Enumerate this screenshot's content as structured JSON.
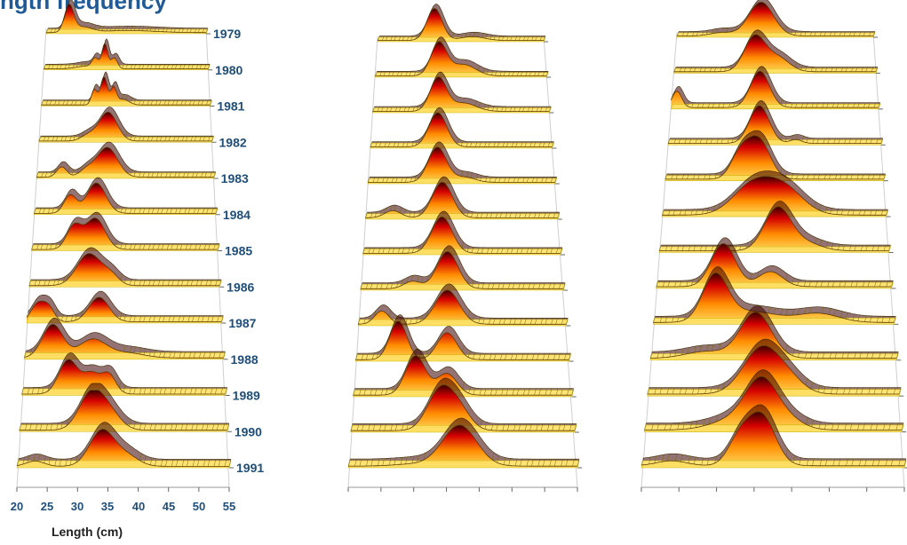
{
  "figure": {
    "title": "ngth frequency"
  },
  "colors": {
    "label": "#1f4e79",
    "ribbon_low": "#ffe066",
    "ribbon_mid": "#ff8c00",
    "ribbon_high": "#d40000",
    "ribbon_peak": "#3a0000",
    "base": "#c8b400"
  },
  "chart_data": [
    {
      "type": "area",
      "panel": "left",
      "xlabel": "Length (cm)",
      "ylabel": "",
      "xlim": [
        20,
        55
      ],
      "x_ticks": [
        "20",
        "25",
        "30",
        "35",
        "40",
        "45",
        "50",
        "55"
      ],
      "series": [
        {
          "name": "1979",
          "peaks": [
            [
              25,
              1.0,
              1.0
            ],
            [
              28,
              0.2,
              2.0
            ],
            [
              38,
              0.08,
              6.0
            ]
          ]
        },
        {
          "name": "1980",
          "peaks": [
            [
              33,
              0.9,
              0.6
            ],
            [
              31,
              0.35,
              0.7
            ],
            [
              35,
              0.4,
              0.7
            ],
            [
              29,
              0.1,
              2.0
            ]
          ]
        },
        {
          "name": "1981",
          "peaks": [
            [
              31,
              0.55,
              0.6
            ],
            [
              33,
              1.0,
              0.7
            ],
            [
              35,
              0.6,
              0.6
            ],
            [
              37,
              0.2,
              1.2
            ]
          ]
        },
        {
          "name": "1982",
          "peaks": [
            [
              34,
              1.0,
              1.8
            ],
            [
              30,
              0.2,
              1.5
            ]
          ]
        },
        {
          "name": "1983",
          "peaks": [
            [
              25,
              0.35,
              1.0
            ],
            [
              34,
              1.0,
              2.0
            ],
            [
              30,
              0.25,
              1.5
            ]
          ]
        },
        {
          "name": "1984",
          "peaks": [
            [
              27,
              0.6,
              1.2
            ],
            [
              32,
              1.0,
              1.8
            ]
          ]
        },
        {
          "name": "1985",
          "peaks": [
            [
              28,
              0.75,
              1.4
            ],
            [
              32,
              1.0,
              1.8
            ]
          ]
        },
        {
          "name": "1986",
          "peaks": [
            [
              31,
              1.0,
              2.2
            ],
            [
              35,
              0.3,
              1.5
            ]
          ]
        },
        {
          "name": "1987",
          "peaks": [
            [
              22,
              0.55,
              1.2
            ],
            [
              24,
              0.4,
              1.0
            ],
            [
              33,
              0.75,
              1.8
            ]
          ]
        },
        {
          "name": "1988",
          "peaks": [
            [
              25,
              1.0,
              1.8
            ],
            [
              32,
              0.55,
              2.4
            ],
            [
              38,
              0.15,
              3.0
            ]
          ]
        },
        {
          "name": "1989",
          "peaks": [
            [
              28,
              1.0,
              1.6
            ],
            [
              32,
              0.6,
              1.5
            ],
            [
              35,
              0.55,
              1.2
            ]
          ]
        },
        {
          "name": "1990",
          "peaks": [
            [
              32,
              1.0,
              2.0
            ],
            [
              35,
              0.5,
              2.0
            ]
          ]
        },
        {
          "name": "1991",
          "peaks": [
            [
              23,
              0.15,
              1.5
            ],
            [
              34,
              1.0,
              2.0
            ],
            [
              38,
              0.3,
              2.0
            ]
          ]
        }
      ]
    },
    {
      "type": "area",
      "panel": "middle",
      "xlim": [
        20,
        55
      ],
      "series": [
        {
          "name": "1979",
          "peaks": [
            [
              32,
              1.0,
              1.6
            ],
            [
              40,
              0.12,
              2.5
            ]
          ]
        },
        {
          "name": "1980",
          "peaks": [
            [
              33,
              1.0,
              1.6
            ],
            [
              38,
              0.35,
              2.5
            ]
          ]
        },
        {
          "name": "1981",
          "peaks": [
            [
              33,
              1.0,
              1.6
            ],
            [
              38,
              0.25,
              2.5
            ]
          ]
        },
        {
          "name": "1982",
          "peaks": [
            [
              33,
              1.0,
              1.7
            ]
          ]
        },
        {
          "name": "1983",
          "peaks": [
            [
              33,
              1.0,
              1.7
            ],
            [
              38,
              0.15,
              2.0
            ]
          ]
        },
        {
          "name": "1984",
          "peaks": [
            [
              25,
              0.2,
              1.5
            ],
            [
              34,
              1.0,
              1.8
            ]
          ]
        },
        {
          "name": "1985",
          "peaks": [
            [
              34,
              1.0,
              1.8
            ]
          ]
        },
        {
          "name": "1986",
          "peaks": [
            [
              29,
              0.2,
              1.5
            ],
            [
              35,
              1.0,
              1.8
            ]
          ]
        },
        {
          "name": "1987",
          "peaks": [
            [
              24,
              0.35,
              1.2
            ],
            [
              35,
              0.9,
              2.0
            ]
          ]
        },
        {
          "name": "1988",
          "peaks": [
            [
              27,
              1.0,
              1.4
            ],
            [
              35,
              0.7,
              1.6
            ]
          ]
        },
        {
          "name": "1989",
          "peaks": [
            [
              30,
              1.0,
              1.6
            ],
            [
              35,
              0.55,
              1.6
            ]
          ]
        },
        {
          "name": "1990",
          "peaks": [
            [
              34,
              1.0,
              2.0
            ],
            [
              37,
              0.45,
              1.8
            ]
          ]
        },
        {
          "name": "1991",
          "peaks": [
            [
              37,
              1.0,
              2.6
            ],
            [
              30,
              0.05,
              3.0
            ]
          ]
        }
      ]
    },
    {
      "type": "area",
      "panel": "right",
      "xlim": [
        20,
        55
      ],
      "series": [
        {
          "name": "1979",
          "peaks": [
            [
              28,
              0.1,
              2.0
            ],
            [
              35,
              1.0,
              2.2
            ]
          ]
        },
        {
          "name": "1980",
          "peaks": [
            [
              34,
              1.0,
              1.8
            ],
            [
              38,
              0.4,
              2.0
            ]
          ]
        },
        {
          "name": "1981",
          "peaks": [
            [
              21,
              0.45,
              0.8
            ],
            [
              35,
              1.0,
              1.6
            ]
          ]
        },
        {
          "name": "1982",
          "peaks": [
            [
              35,
              1.0,
              1.6
            ],
            [
              41,
              0.1,
              1.0
            ]
          ]
        },
        {
          "name": "1983",
          "peaks": [
            [
              32,
              0.6,
              1.5
            ],
            [
              35,
              1.0,
              1.8
            ]
          ]
        },
        {
          "name": "1984",
          "peaks": [
            [
              34,
              0.7,
              3.0
            ],
            [
              39,
              0.65,
              3.0
            ]
          ]
        },
        {
          "name": "1985",
          "peaks": [
            [
              38,
              1.0,
              2.0
            ],
            [
              42,
              0.2,
              2.5
            ]
          ]
        },
        {
          "name": "1986",
          "peaks": [
            [
              30,
              1.0,
              1.8
            ],
            [
              37,
              0.35,
              1.8
            ]
          ]
        },
        {
          "name": "1987",
          "peaks": [
            [
              29,
              1.0,
              1.8
            ],
            [
              34,
              0.25,
              4.0
            ],
            [
              44,
              0.2,
              3.0
            ]
          ]
        },
        {
          "name": "1988",
          "peaks": [
            [
              35,
              1.0,
              2.2
            ],
            [
              28,
              0.15,
              3.0
            ]
          ]
        },
        {
          "name": "1989",
          "peaks": [
            [
              36,
              1.0,
              2.6
            ],
            [
              40,
              0.2,
              2.0
            ]
          ]
        },
        {
          "name": "1990",
          "peaks": [
            [
              36,
              1.0,
              2.2
            ],
            [
              32,
              0.2,
              3.0
            ],
            [
              40,
              0.15,
              2.0
            ]
          ]
        },
        {
          "name": "1991",
          "peaks": [
            [
              36,
              1.0,
              1.8
            ],
            [
              33,
              0.5,
              1.5
            ],
            [
              24,
              0.1,
              2.0
            ]
          ]
        }
      ]
    }
  ]
}
